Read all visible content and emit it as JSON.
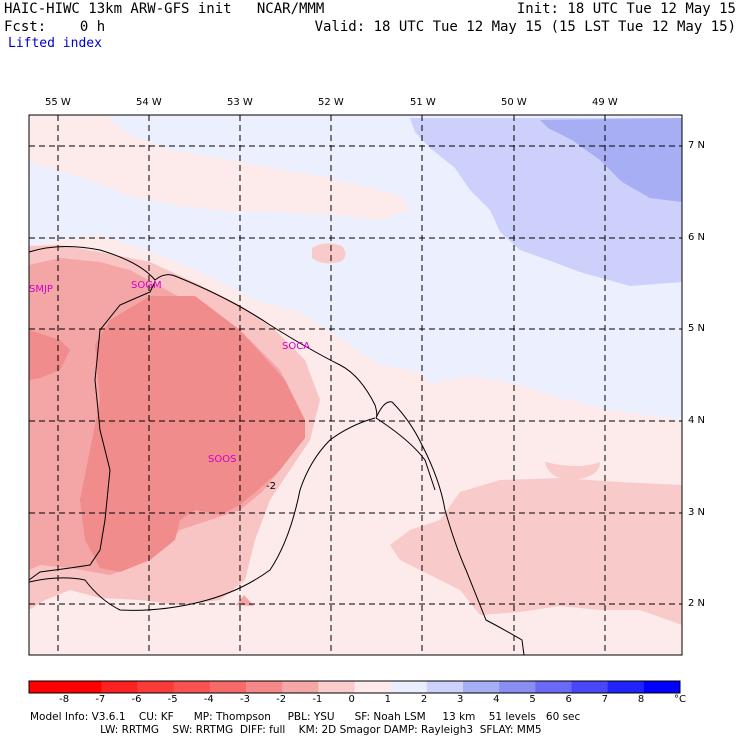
{
  "header": {
    "left_line1": "HAIC-HIWC 13km ARW-GFS init   NCAR/MMM",
    "left_line2": "Fcst:    0 h",
    "right_line1": "Init: 18 UTC Tue 12 May 15",
    "right_line2": "Valid: 18 UTC Tue 12 May 15 (15 LST Tue 12 May 15)",
    "field_name": "Lifted index"
  },
  "map": {
    "lon_labels": [
      "55 W",
      "54 W",
      "53 W",
      "52 W",
      "51 W",
      "50 W",
      "49 W"
    ],
    "lat_labels": [
      "7 N",
      "6 N",
      "5 N",
      "4 N",
      "3 N",
      "2 N"
    ],
    "stations": [
      "SMJP",
      "SOGM",
      "SOCA",
      "SOOS"
    ],
    "contour_label": "-2"
  },
  "colorbar": {
    "labels": [
      "-8",
      "-7",
      "-6",
      "-5",
      "-4",
      "-3",
      "-2",
      "-1",
      "0",
      "1",
      "2",
      "3",
      "4",
      "5",
      "6",
      "7",
      "8"
    ],
    "unit": "°C",
    "colors": [
      "#ff0000",
      "#fd2222",
      "#fb3a3a",
      "#f95252",
      "#f76a6a",
      "#f58888",
      "#f5a6a6",
      "#fbcccc",
      "#feeaea",
      "#eaeefe",
      "#ccd2fb",
      "#a6aef5",
      "#8a8ef3",
      "#6a6af7",
      "#4848fa",
      "#2222fd",
      "#0000ff"
    ]
  },
  "footer": {
    "line1": "Model Info: V3.6.1    CU: KF      MP: Thompson     PBL: YSU      SF: Noah LSM     13 km    51 levels   60 sec",
    "line2": "                     LW: RRTMG    SW: RRTMG  DIFF: full    KM: 2D Smagor DAMP: Rayleigh3  SFLAY: MM5"
  }
}
